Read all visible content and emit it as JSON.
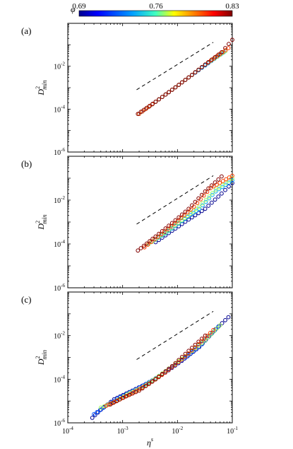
{
  "colorbar": {
    "label": "φ",
    "min_label": "0.69",
    "mid_label": "0.76",
    "max_label": "0.83",
    "range": [
      0.69,
      0.83
    ],
    "colormap": [
      "#00008f",
      "#0000ff",
      "#00a0ff",
      "#40ffc0",
      "#ffff00",
      "#ff8000",
      "#ff0000",
      "#800000"
    ]
  },
  "shared_x_axis": {
    "label": "η",
    "label_superscript": "s",
    "scale": "log",
    "xlim": [
      0.0001,
      0.1
    ],
    "ticks": [
      {
        "value": 0.0001,
        "base": "10",
        "exp": "-4"
      },
      {
        "value": 0.001,
        "base": "10",
        "exp": "-3"
      },
      {
        "value": 0.01,
        "base": "10",
        "exp": "-2"
      },
      {
        "value": 0.1,
        "base": "10",
        "exp": "-1"
      }
    ]
  },
  "chart_data": [
    {
      "type": "scatter",
      "panel_label": "(a)",
      "ylabel": "D",
      "ylabel_sup": "2",
      "ylabel_sub": "min",
      "xscale": "log",
      "yscale": "log",
      "xlim": [
        0.0001,
        0.1
      ],
      "ylim": [
        1e-06,
        1
      ],
      "yticks": [
        {
          "value": 1e-06,
          "base": "10",
          "exp": "-6"
        },
        {
          "value": 0.0001,
          "base": "10",
          "exp": "-4"
        },
        {
          "value": 0.01,
          "base": "10",
          "exp": "-2"
        }
      ],
      "reference_line": {
        "style": "dashed",
        "x": [
          0.0018,
          0.045
        ],
        "y": [
          0.0008,
          0.13
        ]
      },
      "series": [
        {
          "phi": 0.69,
          "x": [
            0.002,
            0.004,
            0.008,
            0.016,
            0.032,
            0.06
          ],
          "y": [
            6e-05,
            0.00022,
            0.0008,
            0.003,
            0.011,
            0.035
          ]
        },
        {
          "phi": 0.73,
          "x": [
            0.002,
            0.004,
            0.008,
            0.016,
            0.032,
            0.07
          ],
          "y": [
            6e-05,
            0.00022,
            0.0008,
            0.003,
            0.011,
            0.045
          ]
        },
        {
          "phi": 0.76,
          "x": [
            0.002,
            0.004,
            0.008,
            0.016,
            0.032,
            0.075
          ],
          "y": [
            6e-05,
            0.00022,
            0.0008,
            0.003,
            0.012,
            0.05
          ]
        },
        {
          "phi": 0.8,
          "x": [
            0.002,
            0.004,
            0.008,
            0.016,
            0.032,
            0.085
          ],
          "y": [
            6e-05,
            0.00022,
            0.0008,
            0.003,
            0.012,
            0.07
          ]
        },
        {
          "phi": 0.83,
          "x": [
            0.0019,
            0.004,
            0.008,
            0.016,
            0.032,
            0.064,
            0.1
          ],
          "y": [
            6e-05,
            0.00022,
            0.0008,
            0.003,
            0.012,
            0.045,
            0.17
          ]
        }
      ]
    },
    {
      "type": "scatter",
      "panel_label": "(b)",
      "ylabel": "D",
      "ylabel_sup": "2",
      "ylabel_sub": "min",
      "xscale": "log",
      "yscale": "log",
      "xlim": [
        0.0001,
        0.1
      ],
      "ylim": [
        1e-06,
        1
      ],
      "yticks": [
        {
          "value": 1e-06,
          "base": "10",
          "exp": "-6"
        },
        {
          "value": 0.0001,
          "base": "10",
          "exp": "-4"
        },
        {
          "value": 0.01,
          "base": "10",
          "exp": "-2"
        }
      ],
      "reference_line": {
        "style": "dashed",
        "x": [
          0.0018,
          0.045
        ],
        "y": [
          0.0008,
          0.13
        ]
      },
      "series": [
        {
          "phi": 0.69,
          "x": [
            0.004,
            0.008,
            0.016,
            0.032,
            0.064,
            0.1
          ],
          "y": [
            0.00012,
            0.0004,
            0.0013,
            0.004,
            0.02,
            0.06
          ]
        },
        {
          "phi": 0.73,
          "x": [
            0.003,
            0.006,
            0.012,
            0.025,
            0.05,
            0.1
          ],
          "y": [
            0.0001,
            0.0003,
            0.0011,
            0.004,
            0.025,
            0.08
          ]
        },
        {
          "phi": 0.76,
          "x": [
            0.003,
            0.006,
            0.012,
            0.025,
            0.05,
            0.1
          ],
          "y": [
            0.0001,
            0.00032,
            0.0012,
            0.005,
            0.03,
            0.1
          ]
        },
        {
          "phi": 0.8,
          "x": [
            0.0025,
            0.005,
            0.01,
            0.02,
            0.04,
            0.1
          ],
          "y": [
            7e-05,
            0.00028,
            0.0011,
            0.005,
            0.035,
            0.13
          ]
        },
        {
          "phi": 0.83,
          "x": [
            0.0019,
            0.004,
            0.008,
            0.016,
            0.032,
            0.064
          ],
          "y": [
            5e-05,
            0.00022,
            0.0009,
            0.004,
            0.025,
            0.12
          ]
        }
      ]
    },
    {
      "type": "scatter",
      "panel_label": "(c)",
      "ylabel": "D",
      "ylabel_sup": "2",
      "ylabel_sub": "min",
      "xscale": "log",
      "yscale": "log",
      "xlim": [
        0.0001,
        0.1
      ],
      "ylim": [
        1e-06,
        1
      ],
      "yticks": [
        {
          "value": 1e-06,
          "base": "10",
          "exp": "-6"
        },
        {
          "value": 0.0001,
          "base": "10",
          "exp": "-4"
        },
        {
          "value": 0.01,
          "base": "10",
          "exp": "-2"
        }
      ],
      "reference_line": {
        "style": "dashed",
        "x": [
          0.0018,
          0.045
        ],
        "y": [
          0.0008,
          0.13
        ]
      },
      "series": [
        {
          "phi": 0.69,
          "x": [
            0.00028,
            0.0004,
            0.0007,
            0.0015,
            0.003,
            0.006,
            0.012,
            0.025,
            0.05,
            0.085
          ],
          "y": [
            1.7e-06,
            4e-06,
            1.2e-05,
            3e-05,
            7e-05,
            0.0002,
            0.0007,
            0.003,
            0.02,
            0.07
          ]
        },
        {
          "phi": 0.72,
          "x": [
            0.0003,
            0.0005,
            0.0009,
            0.0018,
            0.0035,
            0.007,
            0.014,
            0.028,
            0.055
          ],
          "y": [
            2.5e-06,
            6e-06,
            1.5e-05,
            3.5e-05,
            9e-05,
            0.00028,
            0.001,
            0.004,
            0.025
          ]
        },
        {
          "phi": 0.76,
          "x": [
            0.0004,
            0.0007,
            0.0012,
            0.0022,
            0.004,
            0.008,
            0.016,
            0.032,
            0.06
          ],
          "y": [
            5e-06,
            9e-06,
            2e-05,
            4e-05,
            0.00011,
            0.0004,
            0.0015,
            0.006,
            0.03
          ]
        },
        {
          "phi": 0.8,
          "x": [
            0.0005,
            0.0009,
            0.0016,
            0.003,
            0.006,
            0.012,
            0.024,
            0.045
          ],
          "y": [
            6e-06,
            1.2e-05,
            2.5e-05,
            6e-05,
            0.0002,
            0.0008,
            0.004,
            0.018
          ]
        },
        {
          "phi": 0.83,
          "x": [
            0.0006,
            0.001,
            0.002,
            0.004,
            0.008,
            0.016,
            0.032
          ],
          "y": [
            7e-06,
            1.4e-05,
            3e-05,
            0.0001,
            0.0004,
            0.002,
            0.01
          ]
        }
      ]
    }
  ]
}
